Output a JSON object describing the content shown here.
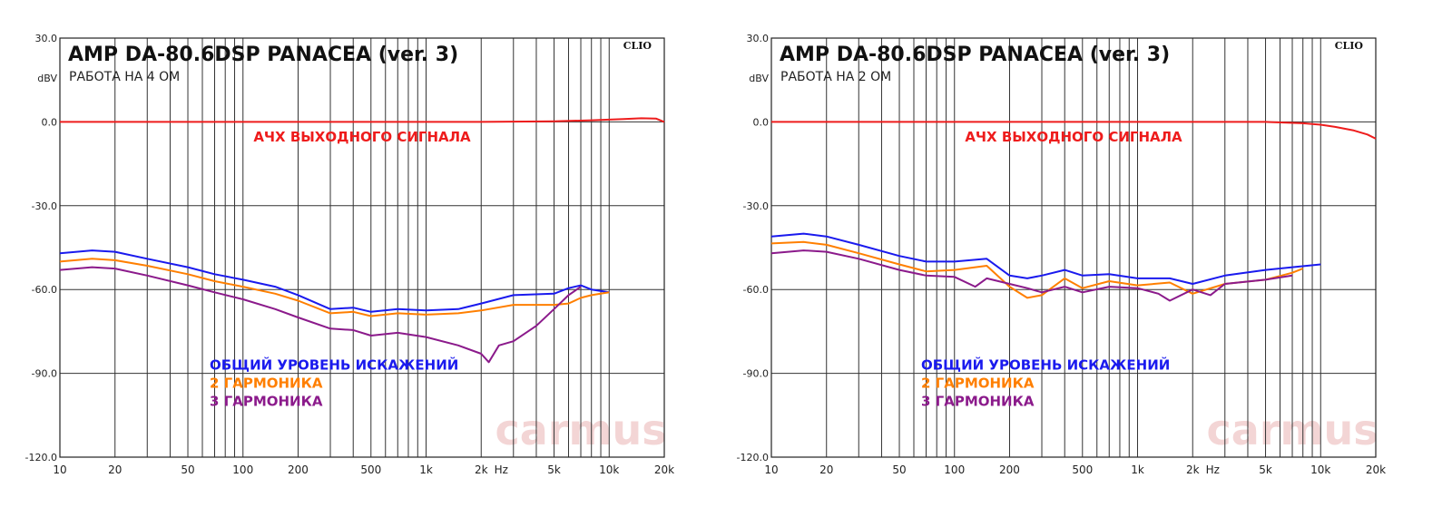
{
  "chart_data": [
    {
      "type": "line",
      "title": "AMP DA-80.6DSP PANACEA (ver. 3)",
      "subtitle": "РАБОТА НА 4 ОМ",
      "ylabel": "dBV",
      "xunit": "Hz",
      "logo": "CLIO",
      "watermark": "carmus",
      "x_scale": "log",
      "xlim": [
        10,
        20000
      ],
      "ylim": [
        -120,
        30
      ],
      "yticks": [
        "30.0",
        "0.0",
        "-30.0",
        "-60.0",
        "-90.0",
        "-120.0"
      ],
      "xticks": [
        "10",
        "20",
        "50",
        "100",
        "200",
        "500",
        "1k",
        "2k",
        "5k",
        "10k",
        "20k"
      ],
      "grid": true,
      "series": [
        {
          "name": "АЧХ ВЫХОДНОГО СИГНАЛА",
          "color": "#ee1c1c",
          "x": [
            10,
            20,
            50,
            100,
            200,
            500,
            1000,
            2000,
            5000,
            8000,
            12000,
            15000,
            18000,
            20000
          ],
          "y": [
            0,
            0,
            0,
            0,
            0,
            0,
            0,
            0,
            0.2,
            0.6,
            1.0,
            1.3,
            1.2,
            0
          ]
        },
        {
          "name": "ОБЩИЙ УРОВЕНЬ ИСКАЖЕНИЙ",
          "color": "#1a1aee",
          "x": [
            10,
            15,
            20,
            30,
            50,
            70,
            100,
            150,
            200,
            300,
            400,
            500,
            700,
            1000,
            1500,
            2000,
            3000,
            5000,
            6000,
            7000,
            8000,
            10000
          ],
          "y": [
            -47,
            -46,
            -46.5,
            -49,
            -52,
            -54.5,
            -56.5,
            -59,
            -62,
            -67,
            -66.5,
            -68,
            -67,
            -67.5,
            -67,
            -65,
            -62,
            -61.5,
            -59.5,
            -58.5,
            -60,
            -61
          ]
        },
        {
          "name": "2 ГАРМОНИКА",
          "color": "#ff7f00",
          "x": [
            10,
            15,
            20,
            30,
            50,
            70,
            100,
            150,
            200,
            300,
            400,
            500,
            700,
            1000,
            1500,
            2000,
            3000,
            5000,
            6000,
            7000,
            8000,
            10000
          ],
          "y": [
            -50,
            -49,
            -49.5,
            -51.5,
            -54.5,
            -57,
            -59,
            -61.5,
            -64,
            -68.5,
            -68,
            -69.5,
            -68.5,
            -69,
            -68.5,
            -67.5,
            -65.5,
            -65.5,
            -65,
            -63,
            -62,
            -61
          ]
        },
        {
          "name": "3 ГАРМОНИКА",
          "color": "#8b1a8b",
          "x": [
            10,
            15,
            20,
            30,
            50,
            70,
            100,
            150,
            200,
            300,
            400,
            500,
            700,
            1000,
            1500,
            2000,
            2200,
            2500,
            3000,
            4000,
            5000,
            6000,
            7000
          ],
          "y": [
            -53,
            -52,
            -52.5,
            -55,
            -58.5,
            -61,
            -63.5,
            -67,
            -70,
            -74,
            -74.5,
            -76.5,
            -75.5,
            -77,
            -80,
            -83,
            -86,
            -80,
            -78.5,
            -73,
            -67,
            -62,
            -59
          ]
        }
      ]
    },
    {
      "type": "line",
      "title": "AMP DA-80.6DSP PANACEA (ver. 3)",
      "subtitle": "РАБОТА НА 2 ОМ",
      "ylabel": "dBV",
      "xunit": "Hz",
      "logo": "CLIO",
      "watermark": "carmus",
      "x_scale": "log",
      "xlim": [
        10,
        20000
      ],
      "ylim": [
        -120,
        30
      ],
      "yticks": [
        "30.0",
        "0.0",
        "-30.0",
        "-60.0",
        "-90.0",
        "-120.0"
      ],
      "xticks": [
        "10",
        "20",
        "50",
        "100",
        "200",
        "500",
        "1k",
        "2k",
        "5k",
        "10k",
        "20k"
      ],
      "grid": true,
      "series": [
        {
          "name": "АЧХ ВЫХОДНОГО СИГНАЛА",
          "color": "#ee1c1c",
          "x": [
            10,
            20,
            50,
            100,
            200,
            500,
            1000,
            2000,
            5000,
            8000,
            10000,
            12000,
            15000,
            18000,
            20000
          ],
          "y": [
            0,
            0,
            0,
            0,
            0,
            0,
            0,
            0,
            0,
            -0.5,
            -1,
            -1.8,
            -3,
            -4.5,
            -6
          ]
        },
        {
          "name": "ОБЩИЙ УРОВЕНЬ ИСКАЖЕНИЙ",
          "color": "#1a1aee",
          "x": [
            10,
            15,
            20,
            30,
            50,
            70,
            100,
            150,
            200,
            250,
            300,
            400,
            500,
            700,
            1000,
            1500,
            2000,
            3000,
            5000,
            7000,
            10000
          ],
          "y": [
            -41,
            -40,
            -41,
            -44,
            -48,
            -50,
            -50,
            -49,
            -55,
            -56,
            -55,
            -53,
            -55,
            -54.5,
            -56,
            -56,
            -58,
            -55,
            -53,
            -52,
            -51
          ]
        },
        {
          "name": "2 ГАРМОНИКА",
          "color": "#ff7f00",
          "x": [
            10,
            15,
            20,
            30,
            50,
            70,
            100,
            150,
            200,
            250,
            300,
            400,
            500,
            700,
            1000,
            1500,
            2000,
            3000,
            5000,
            7000,
            8000
          ],
          "y": [
            -43.5,
            -43,
            -44,
            -47,
            -51,
            -53.5,
            -53,
            -51.5,
            -59,
            -63,
            -62,
            -56,
            -59.5,
            -57,
            -58.5,
            -57.5,
            -61.5,
            -58,
            -56.5,
            -54,
            -52.5
          ]
        },
        {
          "name": "3 ГАРМОНИКА",
          "color": "#8b1a8b",
          "x": [
            10,
            15,
            20,
            30,
            50,
            70,
            100,
            130,
            150,
            200,
            250,
            300,
            400,
            500,
            700,
            1000,
            1300,
            1500,
            2000,
            2500,
            3000,
            5000,
            7000
          ],
          "y": [
            -47,
            -46,
            -46.5,
            -49,
            -53,
            -55,
            -55.5,
            -59,
            -56,
            -58,
            -59.5,
            -61,
            -59,
            -61,
            -59,
            -59.5,
            -61.5,
            -64,
            -60,
            -62,
            -58,
            -56.5,
            -55
          ]
        }
      ]
    }
  ]
}
